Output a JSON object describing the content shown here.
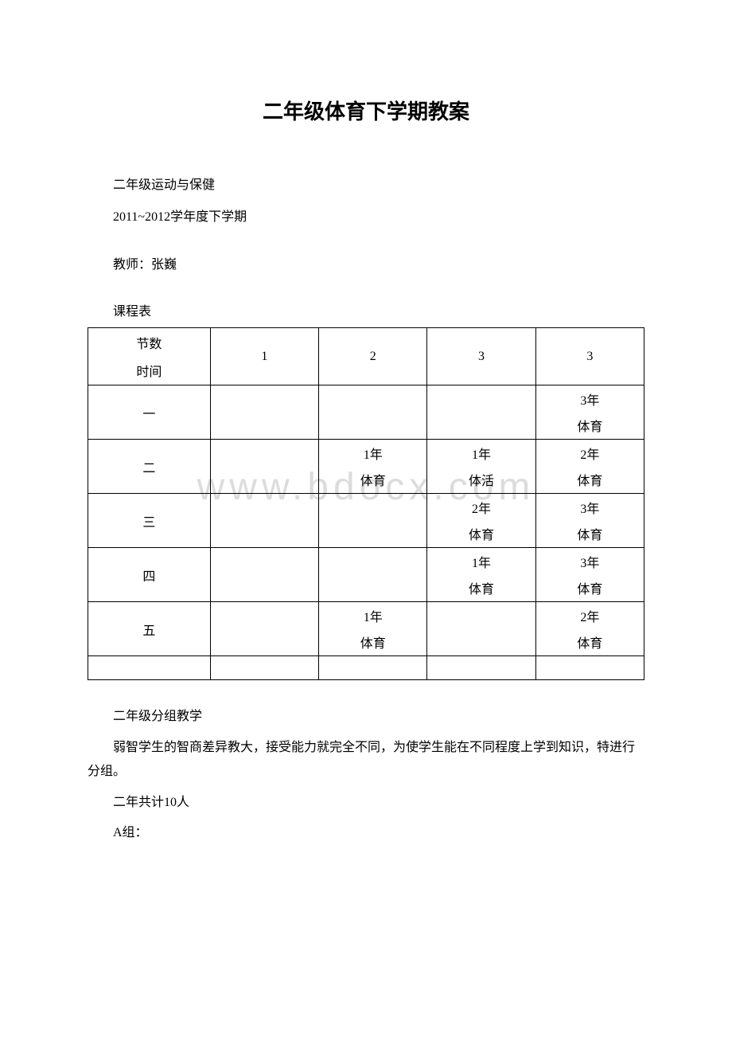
{
  "title": "二年级体育下学期教案",
  "meta": {
    "line1": "二年级运动与保健",
    "line2": "2011~2012学年度下学期",
    "teacher_label": "教师：",
    "teacher_name": "张巍"
  },
  "watermark": "www.bdocx.com",
  "schedule_label": "课程表",
  "schedule": {
    "header_top": "节数",
    "header_bottom": "时间",
    "cols": [
      "1",
      "2",
      "3",
      "3"
    ],
    "rows": [
      {
        "day": "一",
        "c1": [
          "",
          ""
        ],
        "c2": [
          "",
          ""
        ],
        "c3": [
          "",
          ""
        ],
        "c4": [
          "3年",
          "体育"
        ]
      },
      {
        "day": "二",
        "c1": [
          "",
          ""
        ],
        "c2": [
          "1年",
          "体育"
        ],
        "c3": [
          "1年",
          "体活"
        ],
        "c4": [
          "2年",
          "体育"
        ]
      },
      {
        "day": "三",
        "c1": [
          "",
          ""
        ],
        "c2": [
          "",
          ""
        ],
        "c3": [
          "2年",
          "体育"
        ],
        "c4": [
          "3年",
          "体育"
        ]
      },
      {
        "day": "四",
        "c1": [
          "",
          ""
        ],
        "c2": [
          "",
          ""
        ],
        "c3": [
          "1年",
          "体育"
        ],
        "c4": [
          "3年",
          "体育"
        ]
      },
      {
        "day": "五",
        "c1": [
          "",
          ""
        ],
        "c2": [
          "1年",
          "体育"
        ],
        "c3": [
          "",
          ""
        ],
        "c4": [
          "2年",
          "体育"
        ]
      }
    ]
  },
  "body": {
    "heading": "二年级分组教学",
    "para": "弱智学生的智商差异教大，接受能力就完全不同，为使学生能在不同程度上学到知识，特进行分组。",
    "count": "二年共计10人",
    "group": "A组："
  }
}
